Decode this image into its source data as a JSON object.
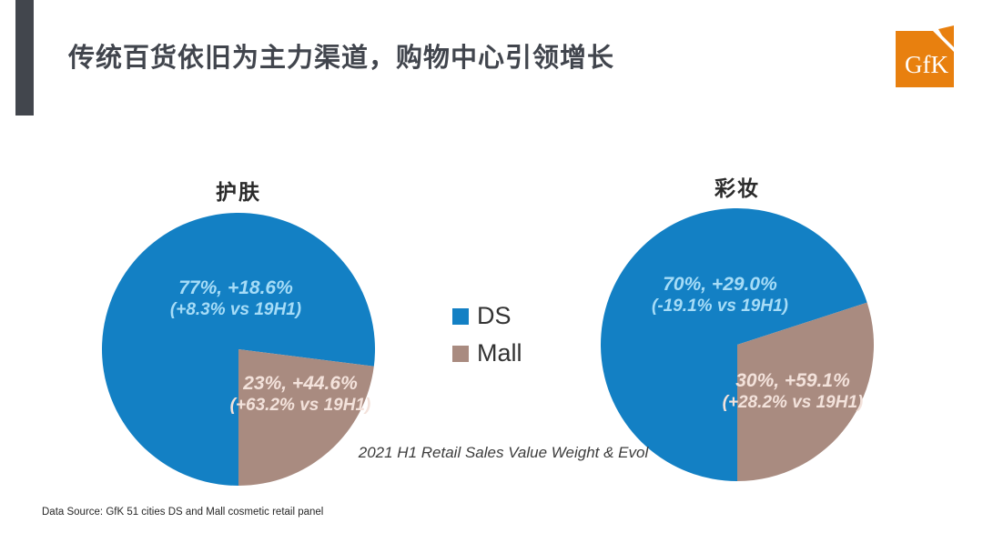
{
  "slide": {
    "title": "传统百货依旧为主力渠道，购物中心引领增长",
    "logo_text": "GfK",
    "caption": "2021 H1 Retail Sales Value Weight & Evol",
    "data_source": "Data Source: GfK 51 cities DS and Mall  cosmetic retail panel"
  },
  "legend": {
    "items": [
      {
        "label": "DS",
        "color": "#1380c4"
      },
      {
        "label": "Mall",
        "color": "#a98b80"
      }
    ]
  },
  "colors": {
    "ds_blue": "#1380c4",
    "mall_brown": "#a98b80",
    "accent_bar_gray": "#42464d",
    "logo_orange": "#e8800f",
    "ds_label_text": "#a6dcf7",
    "mall_label_text": "#f3e2db"
  },
  "chart_data": [
    {
      "type": "pie",
      "title": "护肤",
      "start_angle_deg": 180,
      "categories": [
        "DS",
        "Mall"
      ],
      "values": [
        77,
        23
      ],
      "slices": [
        {
          "label": "DS",
          "weight_pct": 77,
          "growth": "+18.6%",
          "vs_19h1": "+8.3%",
          "line1": "77%,  +18.6%",
          "line2": "(+8.3% vs 19H1)",
          "color": "#1380c4"
        },
        {
          "label": "Mall",
          "weight_pct": 23,
          "growth": "+44.6%",
          "vs_19h1": "+63.2%",
          "line1": "23%,  +44.6%",
          "line2": "(+63.2% vs 19H1)",
          "color": "#a98b80"
        }
      ]
    },
    {
      "type": "pie",
      "title": "彩妆",
      "start_angle_deg": 180,
      "categories": [
        "DS",
        "Mall"
      ],
      "values": [
        70,
        30
      ],
      "slices": [
        {
          "label": "DS",
          "weight_pct": 70,
          "growth": "+29.0%",
          "vs_19h1": "-19.1%",
          "line1": "70%, +29.0%",
          "line2": "(-19.1% vs 19H1)",
          "color": "#1380c4"
        },
        {
          "label": "Mall",
          "weight_pct": 30,
          "growth": "+59.1%",
          "vs_19h1": "+28.2%",
          "line1": "30%, +59.1%",
          "line2": "(+28.2% vs 19H1)",
          "color": "#a98b80"
        }
      ]
    }
  ]
}
